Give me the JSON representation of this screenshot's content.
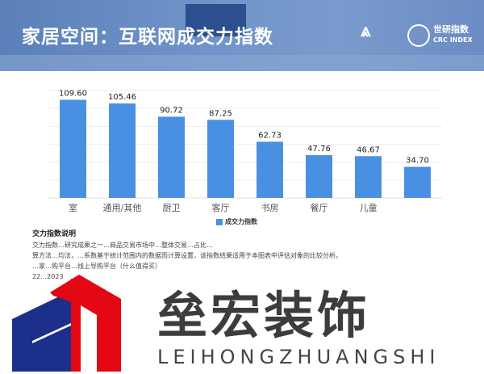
{
  "header": {
    "title": "家居空间：互联网成交力指数",
    "logo_text": "世研指数",
    "logo_sub": "CRC INDEX"
  },
  "chart_data": {
    "type": "bar",
    "title": "",
    "categories": [
      "室",
      "通用/其他",
      "厨卫",
      "客厅",
      "书房",
      "餐厅",
      "儿童",
      ""
    ],
    "values": [
      109.6,
      105.46,
      90.72,
      87.25,
      62.73,
      47.76,
      46.67,
      34.7
    ],
    "value_labels": [
      "109.60",
      "105.46",
      "90.72",
      "87.25",
      "62.73",
      "47.76",
      "46.67",
      "34.70"
    ],
    "ylim": [
      0,
      120
    ],
    "grid": true,
    "legend": "bottom",
    "series": [
      {
        "name": "成交力指数",
        "color": "#4a90e2"
      }
    ]
  },
  "notes": {
    "heading": "交力指数说明",
    "lines": [
      "交力指数…研究成果之一…商品交易市场中…整体交易…占比…",
      "算方法…均法，…系数基于统计范围内的数据而计算设置，该指数结果适用于本图表中评估对象的比较分析。",
      "…家…购平台…线上导购平台（什么值得买）",
      "22…2023"
    ]
  },
  "watermark": {
    "text": "垒宏装饰",
    "sub": "LEIHONGZHUANGSHI"
  }
}
